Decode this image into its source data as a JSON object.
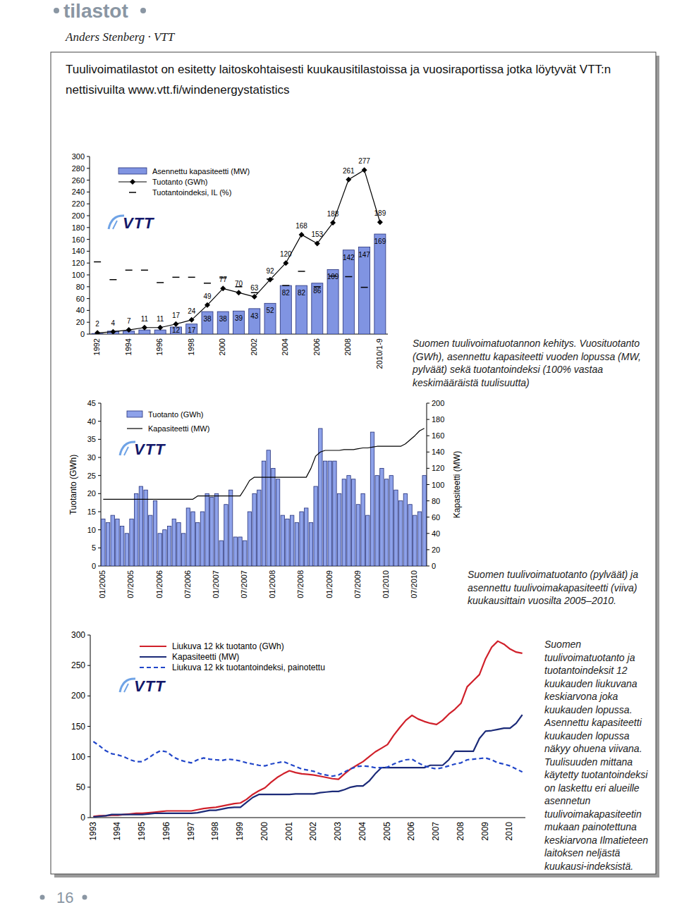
{
  "page": {
    "section": "tilastot",
    "author": "Anders Stenberg · VTT",
    "intro": "Tuulivoimatilastot on esitetty laitoskohtaisesti kuukausitilastoissa ja vuosiraportissa jotka löytyvät VTT:n nettisivuilta www.vtt.fi/windenergystatistics",
    "logo": "VTT",
    "page_number": 16
  },
  "chart_data": [
    {
      "type": "bar",
      "categories": [
        "1992",
        null,
        "1994",
        null,
        "1996",
        null,
        "1998",
        null,
        "2000",
        null,
        "2002",
        null,
        "2004",
        null,
        "2006",
        null,
        "2008",
        null,
        "2010/1-9"
      ],
      "ylim": [
        0,
        300
      ],
      "yticks": [
        0,
        20,
        40,
        60,
        80,
        100,
        120,
        140,
        160,
        180,
        200,
        220,
        240,
        260,
        280,
        300
      ],
      "legend": "upper left",
      "series": [
        {
          "name": "Asennettu kapasiteetti (MW)",
          "type": "bar",
          "color": "#8094e2",
          "data_labels": true,
          "values": [
            1,
            5,
            5,
            7,
            7,
            12,
            17,
            38,
            38,
            39,
            43,
            52,
            82,
            82,
            86,
            109,
            142,
            147,
            169
          ],
          "value_labels": [
            null,
            null,
            null,
            null,
            null,
            "12",
            "17",
            "38",
            "38",
            "39",
            "43",
            "52",
            "82",
            "82",
            "86",
            "109",
            "142",
            "147",
            "169"
          ]
        },
        {
          "name": "Tuotanto (GWh)",
          "type": "line",
          "marker": "diamond",
          "color": "#000000",
          "data_labels": true,
          "values": [
            2,
            4,
            7,
            11,
            11,
            17,
            24,
            49,
            77,
            70,
            63,
            92,
            120,
            168,
            153,
            188,
            261,
            277,
            189
          ]
        },
        {
          "name": "Tuotantoindeksi, IL (%)",
          "type": "scatter",
          "marker": "dash",
          "color": "#000000",
          "values": [
            122,
            92,
            108,
            108,
            87,
            96,
            96,
            86,
            95,
            80,
            70,
            93,
            82,
            106,
            80,
            98,
            97,
            79,
            null
          ]
        }
      ],
      "caption": "Suomen tuulivoimatuotannon kehitys. Vuosituotanto (GWh), asennettu kapasiteetti vuoden lopussa (MW, pylväät) sekä tuotantoindeksi (100% vastaa keskimääräistä tuulisuutta)"
    },
    {
      "type": "bar",
      "categories": [
        "01/2005",
        null,
        null,
        null,
        null,
        null,
        "07/2005",
        null,
        null,
        null,
        null,
        null,
        "01/2006",
        null,
        null,
        null,
        null,
        null,
        "07/2006",
        null,
        null,
        null,
        null,
        null,
        "01/2007",
        null,
        null,
        null,
        null,
        null,
        "07/2007",
        null,
        null,
        null,
        null,
        null,
        "01/2008",
        null,
        null,
        null,
        null,
        null,
        "07/2008",
        null,
        null,
        null,
        null,
        null,
        "01/2009",
        null,
        null,
        null,
        null,
        null,
        "07/2009",
        null,
        null,
        null,
        null,
        null,
        "01/2010",
        null,
        null,
        null,
        null,
        null,
        "07/2010",
        null,
        null
      ],
      "ylim": [
        0,
        45
      ],
      "yticks": [
        0,
        5,
        10,
        15,
        20,
        25,
        30,
        35,
        40,
        45
      ],
      "y2lim": [
        0,
        200
      ],
      "y2ticks": [
        0,
        20,
        40,
        60,
        80,
        100,
        120,
        140,
        160,
        180,
        200
      ],
      "ylabel": "Tuotanto (GWh)",
      "y2label": "Kapasiteetti (MW)",
      "legend": "upper left",
      "series": [
        {
          "name": "Tuotanto (GWh)",
          "type": "bar",
          "color": "#8ea2ea",
          "values": [
            13,
            12,
            14,
            13,
            11,
            9,
            13,
            20,
            22,
            21,
            14,
            18,
            9,
            10,
            11,
            13,
            12,
            9,
            16,
            15,
            12,
            15,
            20,
            19,
            20,
            7,
            17,
            21,
            8,
            8,
            7,
            15,
            20,
            21,
            29,
            32,
            27,
            24,
            14,
            13,
            14,
            12,
            15,
            16,
            12,
            22,
            38,
            29,
            29,
            29,
            20,
            24,
            25,
            24,
            17,
            20,
            14,
            37,
            25,
            27,
            24,
            25,
            21,
            18,
            20,
            17,
            14,
            15,
            25
          ]
        },
        {
          "name": "Kapasiteetti (MW)",
          "type": "line",
          "axis": "y2",
          "color": "#000000",
          "line_style": "solid",
          "values": [
            82,
            82,
            82,
            82,
            82,
            82,
            82,
            82,
            82,
            82,
            82,
            82,
            82,
            82,
            82,
            82,
            82,
            82,
            82,
            82,
            86,
            86,
            86,
            86,
            86,
            86,
            86,
            86,
            86,
            86,
            95,
            105,
            109,
            109,
            109,
            109,
            109,
            109,
            109,
            109,
            109,
            109,
            109,
            109,
            120,
            135,
            140,
            142,
            142,
            142,
            142,
            143,
            143,
            143,
            144,
            145,
            145,
            146,
            147,
            147,
            147,
            147,
            147,
            147,
            150,
            155,
            160,
            166,
            169
          ]
        }
      ],
      "caption": "Suomen tuulivoimatuotanto (pylväät) ja asennettu tuulivoimakapasiteetti (viiva) kuukausittain vuosilta 2005–2010."
    },
    {
      "type": "line",
      "categories": [
        "1993",
        null,
        null,
        null,
        "1994",
        null,
        null,
        null,
        "1995",
        null,
        null,
        null,
        "1996",
        null,
        null,
        null,
        "1997",
        null,
        null,
        null,
        "1998",
        null,
        null,
        null,
        "1999",
        null,
        null,
        null,
        "2000",
        null,
        null,
        null,
        "2001",
        null,
        null,
        null,
        "2002",
        null,
        null,
        null,
        "2003",
        null,
        null,
        null,
        "2004",
        null,
        null,
        null,
        "2005",
        null,
        null,
        null,
        "2006",
        null,
        null,
        null,
        "2007",
        null,
        null,
        null,
        "2008",
        null,
        null,
        null,
        "2009",
        null,
        null,
        null,
        "2010",
        null,
        null
      ],
      "ylim": [
        0,
        300
      ],
      "yticks": [
        0,
        50,
        100,
        150,
        200,
        250,
        300
      ],
      "legend": "upper left",
      "series": [
        {
          "name": "Liukuva 12 kk tuotanto (GWh)",
          "color": "#d0202a",
          "line_style": "solid",
          "values": [
            2,
            3,
            3,
            4,
            4,
            5,
            6,
            7,
            7,
            8,
            9,
            10,
            11,
            11,
            11,
            11,
            11,
            13,
            15,
            16,
            17,
            19,
            21,
            23,
            24,
            30,
            38,
            44,
            49,
            58,
            66,
            72,
            77,
            74,
            72,
            71,
            70,
            68,
            66,
            64,
            63,
            72,
            80,
            86,
            92,
            100,
            108,
            114,
            120,
            135,
            148,
            160,
            168,
            162,
            158,
            155,
            153,
            160,
            170,
            178,
            188,
            215,
            225,
            235,
            261,
            280,
            290,
            285,
            277,
            272,
            270
          ]
        },
        {
          "name": "Kapasiteetti (MW)",
          "color": "#1b2a78",
          "line_style": "solid",
          "values": [
            1,
            2,
            3,
            5,
            5,
            5,
            5,
            5,
            5,
            6,
            7,
            7,
            7,
            7,
            7,
            7,
            7,
            8,
            10,
            12,
            12,
            14,
            16,
            17,
            17,
            25,
            33,
            38,
            38,
            38,
            38,
            38,
            38,
            39,
            39,
            39,
            39,
            41,
            42,
            43,
            43,
            46,
            50,
            52,
            52,
            60,
            72,
            82,
            82,
            82,
            82,
            82,
            82,
            82,
            82,
            86,
            86,
            86,
            95,
            109,
            109,
            109,
            109,
            130,
            142,
            143,
            145,
            147,
            147,
            155,
            169
          ]
        },
        {
          "name": "Liukuva 12 kk tuotantoindeksi, painotettu",
          "color": "#2146c9",
          "line_style": "dashed",
          "values": [
            125,
            118,
            110,
            105,
            103,
            100,
            95,
            92,
            92,
            98,
            105,
            110,
            108,
            100,
            95,
            92,
            90,
            95,
            98,
            96,
            95,
            94,
            96,
            95,
            93,
            90,
            88,
            86,
            85,
            88,
            90,
            92,
            88,
            84,
            80,
            78,
            76,
            72,
            70,
            68,
            70,
            75,
            80,
            84,
            85,
            84,
            82,
            82,
            83,
            88,
            92,
            95,
            96,
            90,
            85,
            82,
            80,
            82,
            85,
            88,
            90,
            95,
            96,
            97,
            98,
            95,
            90,
            88,
            85,
            80,
            75
          ]
        }
      ],
      "caption": "Suomen tuulivoimatuotanto ja tuotantoindeksit 12 kuukauden liukuvana keskiarvona joka kuukauden lopussa. Asennettu kapasiteetti kuukauden lopussa näkyy ohuena viivana. Tuulisuuden mittana käytetty tuotantoindeksi on laskettu eri alueille asennetun tuulivoimakapasiteetin mukaan painotettuna keskiarvona Ilmatieteen laitoksen neljästä kuukausi-indeksistä."
    }
  ]
}
